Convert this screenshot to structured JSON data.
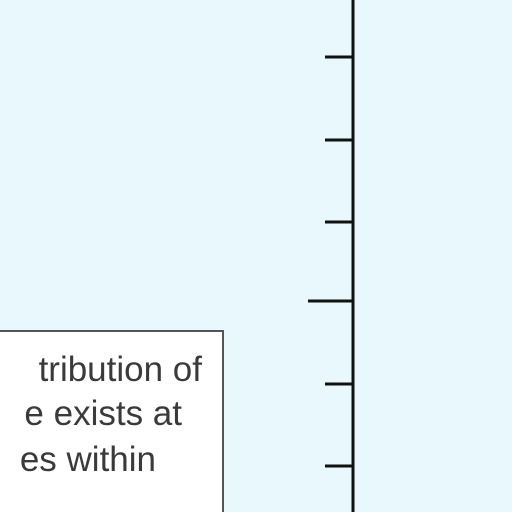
{
  "colors": {
    "background": "#e8f8fc",
    "axis": "#111111",
    "callout_border": "#555555",
    "callout_background": "#ffffff",
    "text": "#3a3a3a"
  },
  "callout": {
    "lines": [
      "tribution of",
      "e exists at",
      "es within"
    ]
  }
}
